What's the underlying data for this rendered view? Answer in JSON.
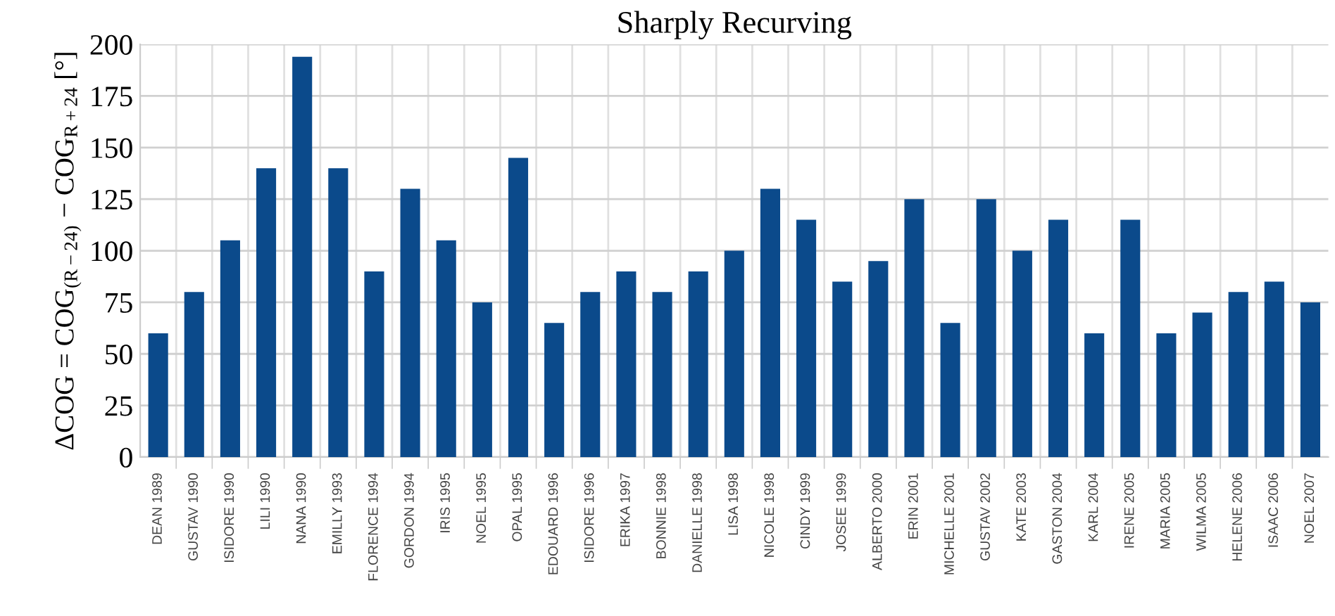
{
  "chart_data": {
    "type": "bar",
    "title": "Sharply Recurving",
    "ylabel": "ΔCOG = COG$_{(R−24)}$ − COG$_{R+24}$ [°]",
    "categories": [
      "DEAN 1989",
      "GUSTAV 1990",
      "ISIDORE 1990",
      "LILI 1990",
      "NANA 1990",
      "EMILLY 1993",
      "FLORENCE 1994",
      "GORDON 1994",
      "IRIS 1995",
      "NOEL 1995",
      "OPAL 1995",
      "EDOUARD 1996",
      "ISIDORE 1996",
      "ERIKA 1997",
      "BONNIE 1998",
      "DANIELLE 1998",
      "LISA 1998",
      "NICOLE 1998",
      "CINDY 1999",
      "JOSEE 1999",
      "ALBERTO 2000",
      "ERIN 2001",
      "MICHELLE 2001",
      "GUSTAV 2002",
      "KATE 2003",
      "GASTON 2004",
      "KARL 2004",
      "IRENE 2005",
      "MARIA 2005",
      "WILMA 2005",
      "HELENE 2006",
      "ISAAC 2006",
      "NOEL 2007"
    ],
    "values": [
      60,
      80,
      105,
      140,
      194,
      140,
      90,
      130,
      105,
      75,
      145,
      65,
      80,
      90,
      80,
      90,
      100,
      130,
      115,
      85,
      95,
      125,
      65,
      125,
      100,
      115,
      60,
      115,
      60,
      70,
      80,
      85,
      75
    ],
    "color": "#0b4a8b",
    "ylim": [
      0,
      200
    ],
    "yticks": [
      0,
      25,
      50,
      75,
      100,
      125,
      150,
      175,
      200
    ],
    "grid": true
  }
}
